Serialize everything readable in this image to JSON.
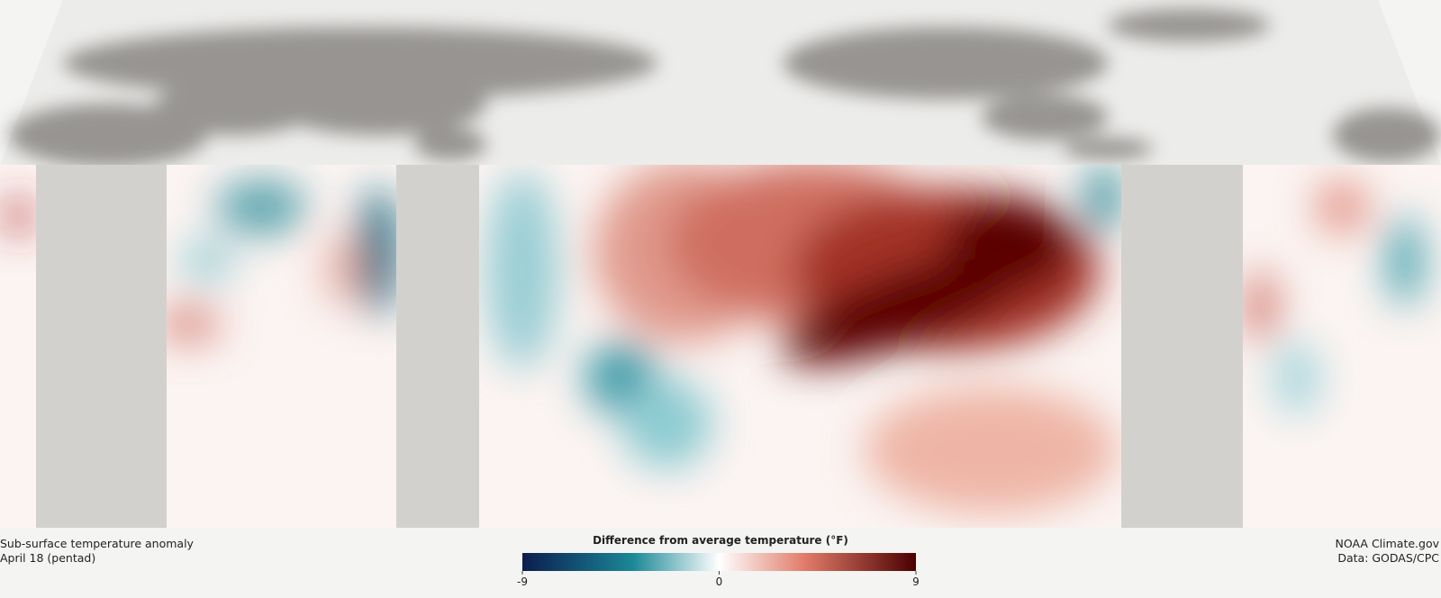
{
  "caption": {
    "title": "Sub-surface temperature anomaly",
    "date": "April 18 (pentad)"
  },
  "legend": {
    "title": "Difference from average temperature (°F)",
    "ticks": [
      -9,
      0,
      9
    ]
  },
  "credit": {
    "source": "NOAA Climate.gov",
    "data": "Data: GODAS/CPC"
  }
}
